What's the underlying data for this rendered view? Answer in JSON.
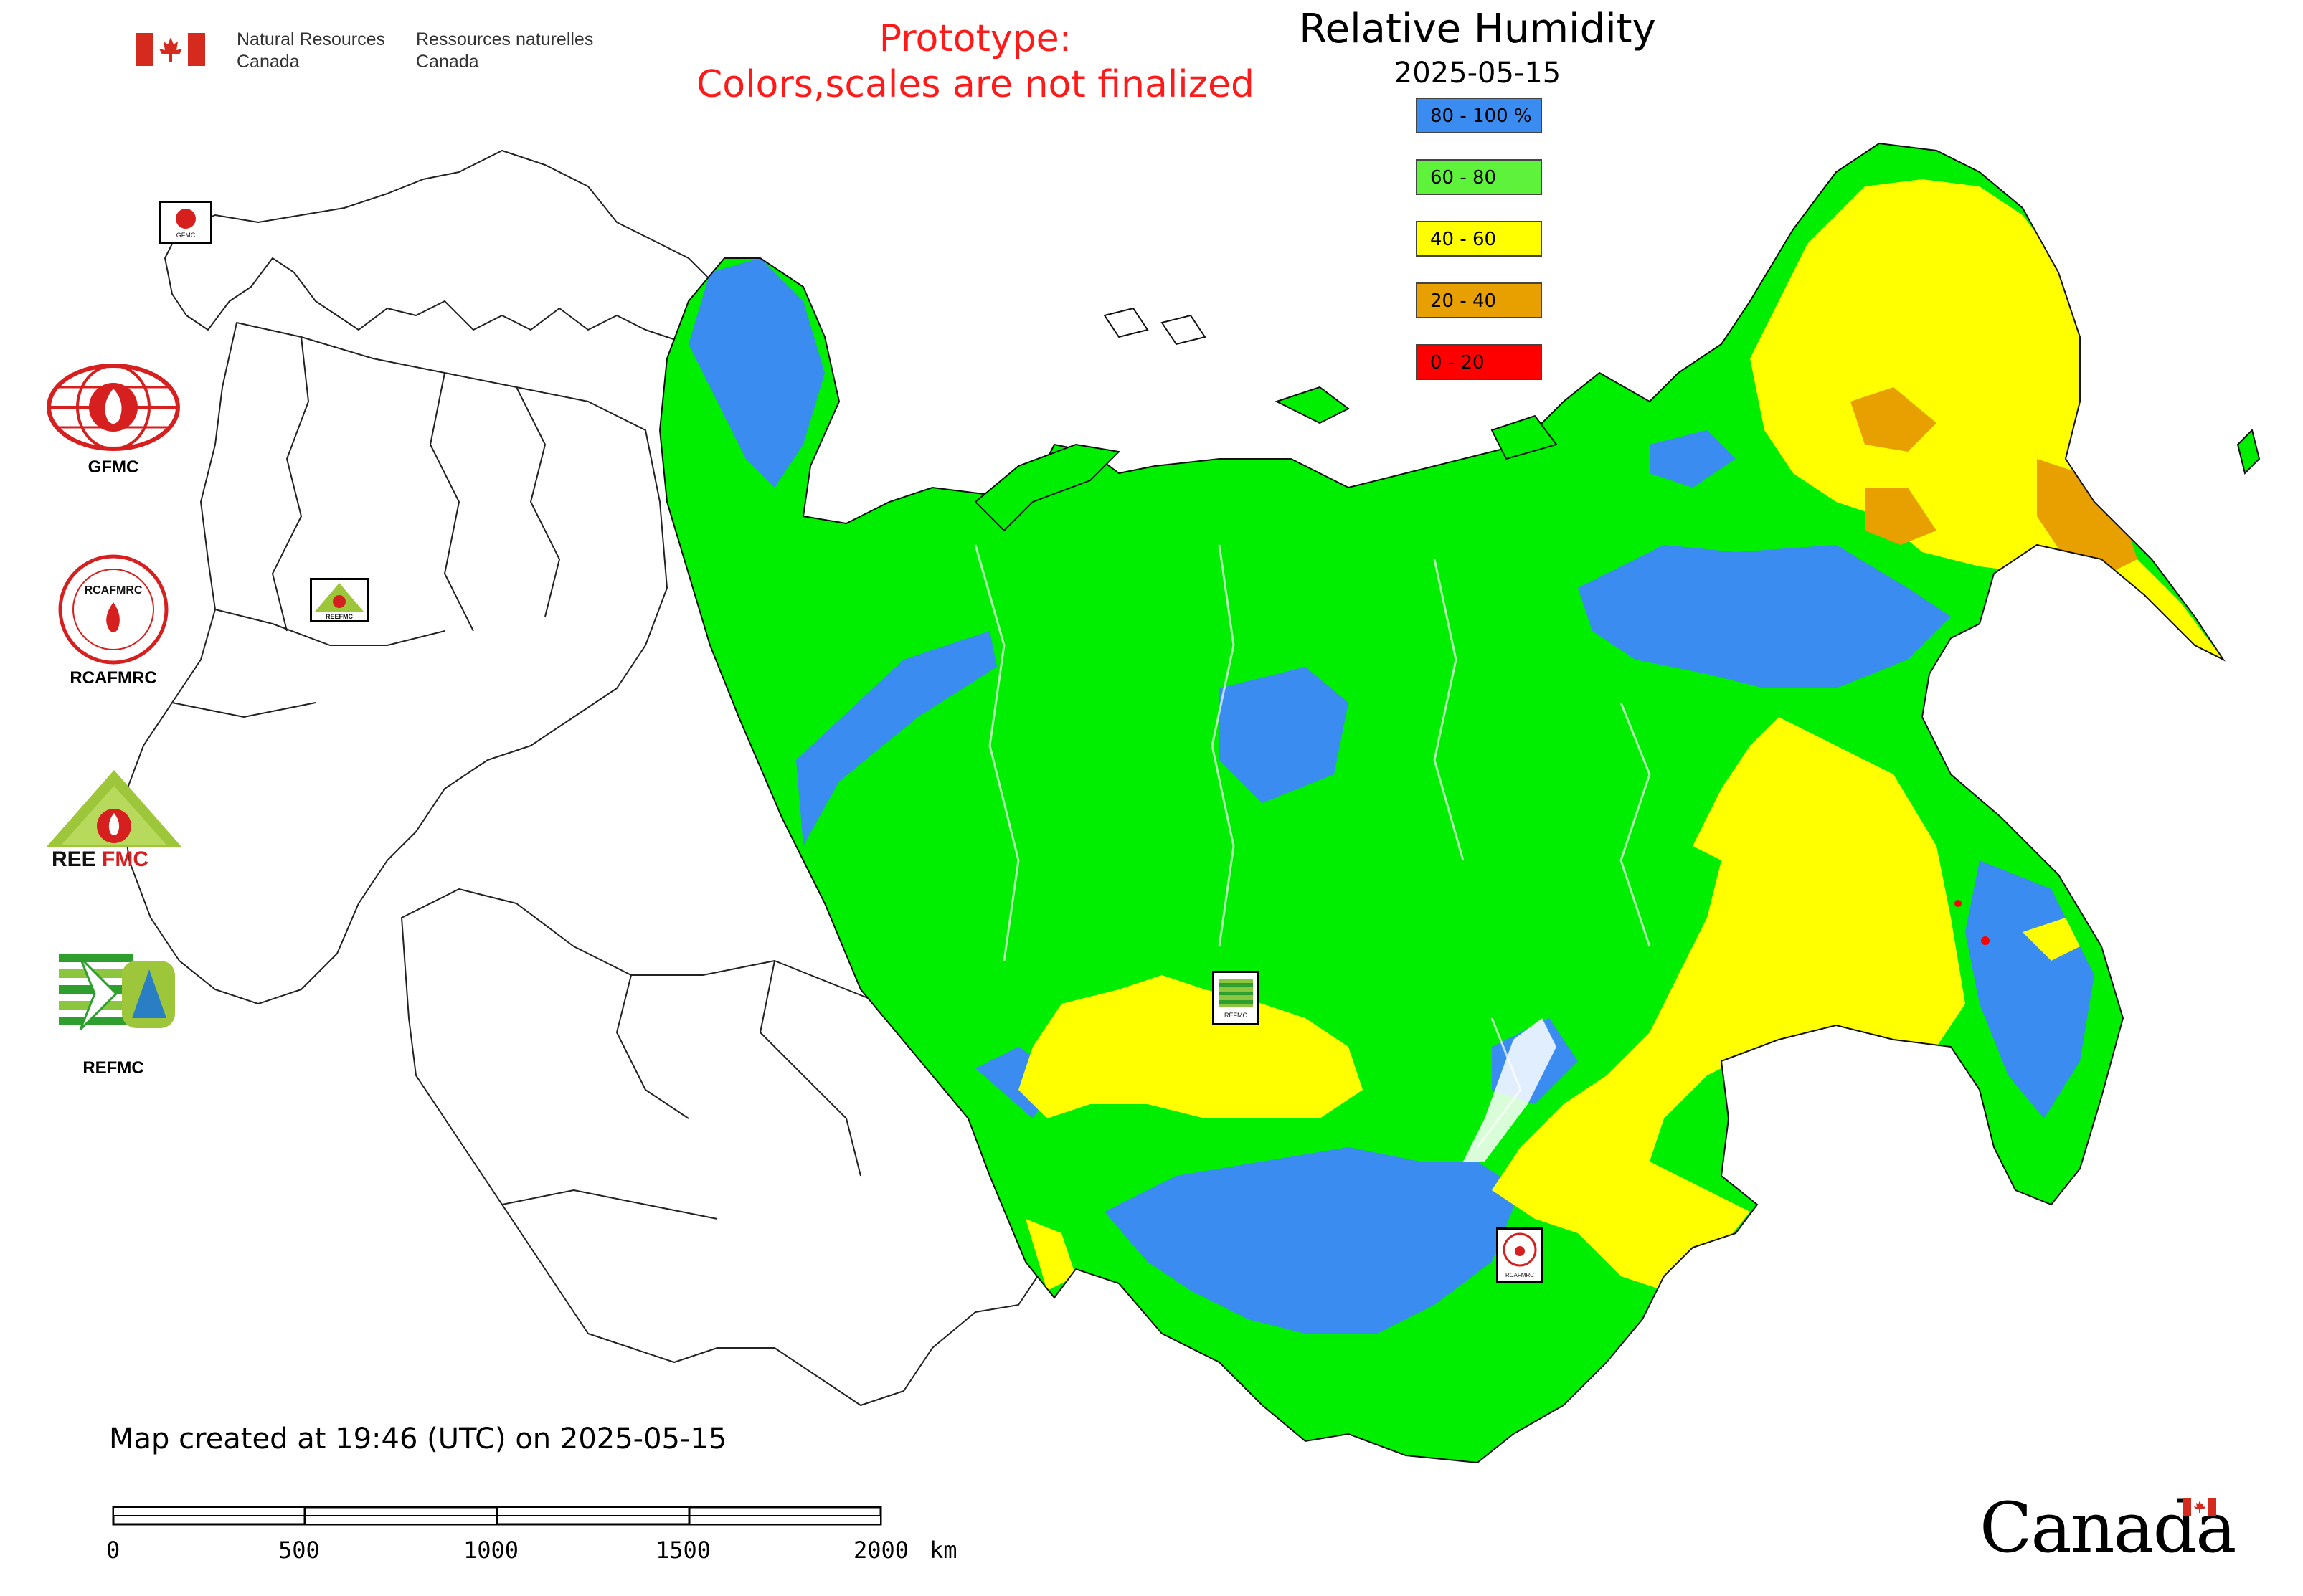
{
  "header": {
    "org_en_line1": "Natural Resources",
    "org_en_line2": "Canada",
    "org_fr_line1": "Ressources naturelles",
    "org_fr_line2": "Canada",
    "flag_icon": "canada-flag-icon"
  },
  "notice": {
    "line1": "Prototype:",
    "line2": "Colors,scales are not finalized",
    "color": "#ff1a1a"
  },
  "map": {
    "title": "Relative Humidity",
    "date": "2025-05-15",
    "projection_icon": "eurasia-map",
    "footer_text": "Map created at 19:46 (UTC) on 2025-05-15"
  },
  "legend": {
    "items": [
      {
        "label": "80 - 100 %",
        "color": "#3a8cf0"
      },
      {
        "label": "60 - 80",
        "color": "#5ff23a"
      },
      {
        "label": "40 - 60",
        "color": "#ffff00"
      },
      {
        "label": "20 - 40",
        "color": "#e8a000"
      },
      {
        "label": "0 - 20",
        "color": "#ff0000"
      }
    ]
  },
  "partners": [
    {
      "name": "GFMC",
      "icon": "gfmc-logo"
    },
    {
      "name": "RCAFMRC",
      "icon": "rcafmrc-logo",
      "ring_text": "RCAFMRC"
    },
    {
      "name": "REEFMC",
      "icon": "reefmc-logo",
      "logo_text_a": "REE",
      "logo_text_b": "FMC"
    },
    {
      "name": "REFMC",
      "icon": "refmc-logo"
    }
  ],
  "map_markers": [
    {
      "name": "GFMC",
      "label": "GFMC"
    },
    {
      "name": "REEFMC",
      "label": "REEFMC"
    },
    {
      "name": "REFMC",
      "label": "REFMC"
    },
    {
      "name": "RCAFMRC",
      "label": "RCAFMRC"
    }
  ],
  "scale": {
    "ticks": [
      "0",
      "500",
      "1000",
      "1500",
      "2000"
    ],
    "unit": "km"
  },
  "wordmark": {
    "text": "Canada",
    "icon": "canada-flag-icon"
  }
}
